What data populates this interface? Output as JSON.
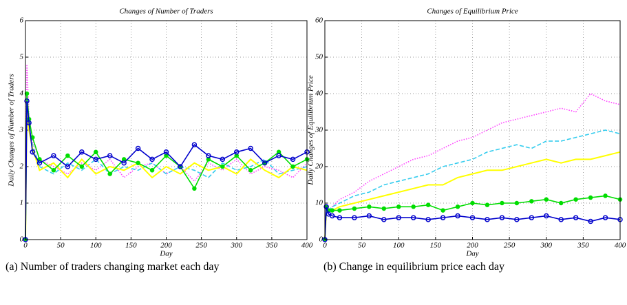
{
  "chart_data": [
    {
      "type": "line",
      "title": "Changes of Number of Traders",
      "xlabel": "Day",
      "ylabel": "Daily Changes of Number of Traders",
      "caption": "(a) Number of traders changing market each day",
      "x": [
        0,
        2,
        5,
        10,
        20,
        40,
        60,
        80,
        100,
        120,
        140,
        160,
        180,
        200,
        220,
        240,
        260,
        280,
        300,
        320,
        340,
        360,
        380,
        400
      ],
      "xlim": [
        0,
        400
      ],
      "ylim": [
        0,
        6
      ],
      "xticks": [
        0,
        50,
        100,
        150,
        200,
        250,
        300,
        350,
        400
      ],
      "yticks": [
        0,
        1,
        2,
        3,
        4,
        5,
        6
      ],
      "grid": true,
      "series": [
        {
          "color": "#0000cc",
          "style": "circle",
          "values": [
            0,
            3.8,
            3.2,
            2.4,
            2.1,
            2.3,
            2.0,
            2.4,
            2.2,
            2.3,
            2.1,
            2.5,
            2.2,
            2.4,
            2.0,
            2.6,
            2.3,
            2.2,
            2.4,
            2.5,
            2.1,
            2.3,
            2.2,
            2.4
          ]
        },
        {
          "color": "#00dd00",
          "style": "dot",
          "values": [
            0,
            4.0,
            3.3,
            2.8,
            2.2,
            1.9,
            2.3,
            2.0,
            2.4,
            1.8,
            2.2,
            2.1,
            1.9,
            2.3,
            2.0,
            1.4,
            2.2,
            2.0,
            2.3,
            1.9,
            2.1,
            2.4,
            2.0,
            2.2
          ]
        },
        {
          "color": "#ffff00",
          "style": "solid",
          "values": [
            0,
            3.5,
            3.0,
            2.5,
            1.9,
            2.1,
            1.7,
            2.2,
            1.8,
            2.0,
            1.9,
            2.1,
            1.7,
            2.0,
            1.8,
            2.1,
            1.9,
            2.0,
            1.8,
            2.2,
            1.9,
            1.7,
            2.0,
            1.9
          ]
        },
        {
          "color": "#33ccee",
          "style": "dashed",
          "values": [
            0,
            3.7,
            3.1,
            2.6,
            2.0,
            1.8,
            2.1,
            1.9,
            2.2,
            1.8,
            2.0,
            1.9,
            2.1,
            1.8,
            2.0,
            1.9,
            1.7,
            2.1,
            1.9,
            2.0,
            2.2,
            1.8,
            1.9,
            2.0
          ]
        },
        {
          "color": "#ff44ff",
          "style": "dotted",
          "values": [
            0,
            4.8,
            3.4,
            2.7,
            2.2,
            2.0,
            1.8,
            2.1,
            1.9,
            2.2,
            1.7,
            2.0,
            2.1,
            1.8,
            2.0,
            1.6,
            2.1,
            1.9,
            2.2,
            1.8,
            2.0,
            1.9,
            1.7,
            2.1
          ]
        }
      ]
    },
    {
      "type": "line",
      "title": "Changes of Equilibrium Price",
      "xlabel": "Day",
      "ylabel": "Daily Changes of Equilibrium Price",
      "caption": "(b) Change in equilibrium price each day",
      "x": [
        0,
        2,
        5,
        10,
        20,
        40,
        60,
        80,
        100,
        120,
        140,
        160,
        180,
        200,
        220,
        240,
        260,
        280,
        300,
        320,
        340,
        360,
        380,
        400
      ],
      "xlim": [
        0,
        400
      ],
      "ylim": [
        0,
        60
      ],
      "xticks": [
        0,
        50,
        100,
        150,
        200,
        250,
        300,
        350,
        400
      ],
      "yticks": [
        0,
        10,
        20,
        30,
        40,
        50,
        60
      ],
      "grid": true,
      "series": [
        {
          "color": "#0000cc",
          "style": "circle",
          "values": [
            0,
            9,
            7,
            6.5,
            6,
            6,
            6.5,
            5.5,
            6,
            6,
            5.5,
            6,
            6.5,
            6,
            5.5,
            6,
            5.5,
            6,
            6.5,
            5.5,
            6,
            5,
            6,
            5.5
          ]
        },
        {
          "color": "#00dd00",
          "style": "dot",
          "values": [
            0,
            9,
            8,
            8,
            8,
            8.5,
            9,
            8.5,
            9,
            9,
            9.5,
            8,
            9,
            10,
            9.5,
            10,
            10,
            10.5,
            11,
            10,
            11,
            11.5,
            12,
            11
          ]
        },
        {
          "color": "#ffff00",
          "style": "solid",
          "values": [
            0,
            8,
            8,
            8,
            9,
            10,
            11,
            12,
            13,
            14,
            15,
            15,
            17,
            18,
            19,
            19,
            20,
            21,
            22,
            21,
            22,
            22,
            23,
            24
          ]
        },
        {
          "color": "#33ccee",
          "style": "dashed",
          "values": [
            0,
            8,
            8,
            9,
            10,
            12,
            13,
            15,
            16,
            17,
            18,
            20,
            21,
            22,
            24,
            25,
            26,
            25,
            27,
            27,
            28,
            29,
            30,
            29
          ]
        },
        {
          "color": "#ff44ff",
          "style": "dotted",
          "values": [
            0,
            8,
            8,
            9,
            11,
            13,
            16,
            18,
            20,
            22,
            23,
            25,
            27,
            28,
            30,
            32,
            33,
            34,
            35,
            36,
            35,
            40,
            38,
            37
          ]
        }
      ]
    }
  ]
}
